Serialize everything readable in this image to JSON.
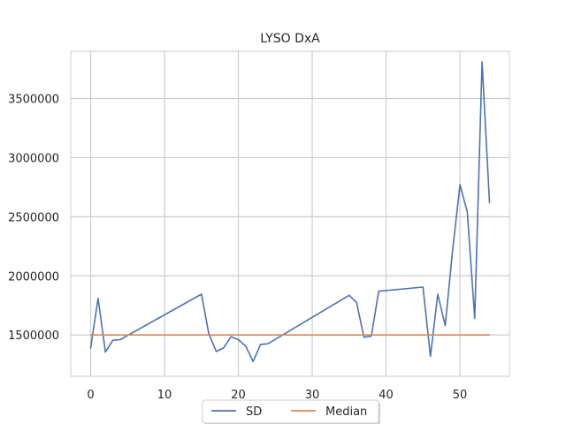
{
  "chart_data": {
    "type": "line",
    "title": "LYSO DxA",
    "xlabel": "",
    "ylabel": "",
    "xlim": [
      -2.7,
      56.7
    ],
    "ylim": [
      1150000,
      3900000
    ],
    "x_ticks": [
      0,
      10,
      20,
      30,
      40,
      50
    ],
    "x_tick_labels": [
      "0",
      "10",
      "20",
      "30",
      "40",
      "50"
    ],
    "y_ticks": [
      1500000,
      2000000,
      2500000,
      3000000,
      3500000
    ],
    "y_tick_labels": [
      "1500000",
      "2000000",
      "2500000",
      "3000000",
      "3500000"
    ],
    "grid": true,
    "legend_position": "bottom-center",
    "series": [
      {
        "name": "SD",
        "color": "#4c72b0",
        "x": [
          0,
          1,
          2,
          3,
          4,
          15,
          16,
          17,
          18,
          19,
          20,
          21,
          22,
          23,
          24,
          35,
          36,
          37,
          38,
          39,
          45,
          46,
          47,
          48,
          49,
          50,
          51,
          52,
          53,
          54
        ],
        "y": [
          1390000,
          1810000,
          1355000,
          1455000,
          1460000,
          1845000,
          1510000,
          1360000,
          1390000,
          1485000,
          1460000,
          1405000,
          1275000,
          1420000,
          1425000,
          1835000,
          1775000,
          1480000,
          1490000,
          1870000,
          1905000,
          1320000,
          1845000,
          1580000,
          2210000,
          2770000,
          2540000,
          1640000,
          3810000,
          2620000
        ]
      },
      {
        "name": "Median",
        "color": "#dd8452",
        "x": [
          0,
          54
        ],
        "y": [
          1500000,
          1500000
        ]
      }
    ]
  }
}
